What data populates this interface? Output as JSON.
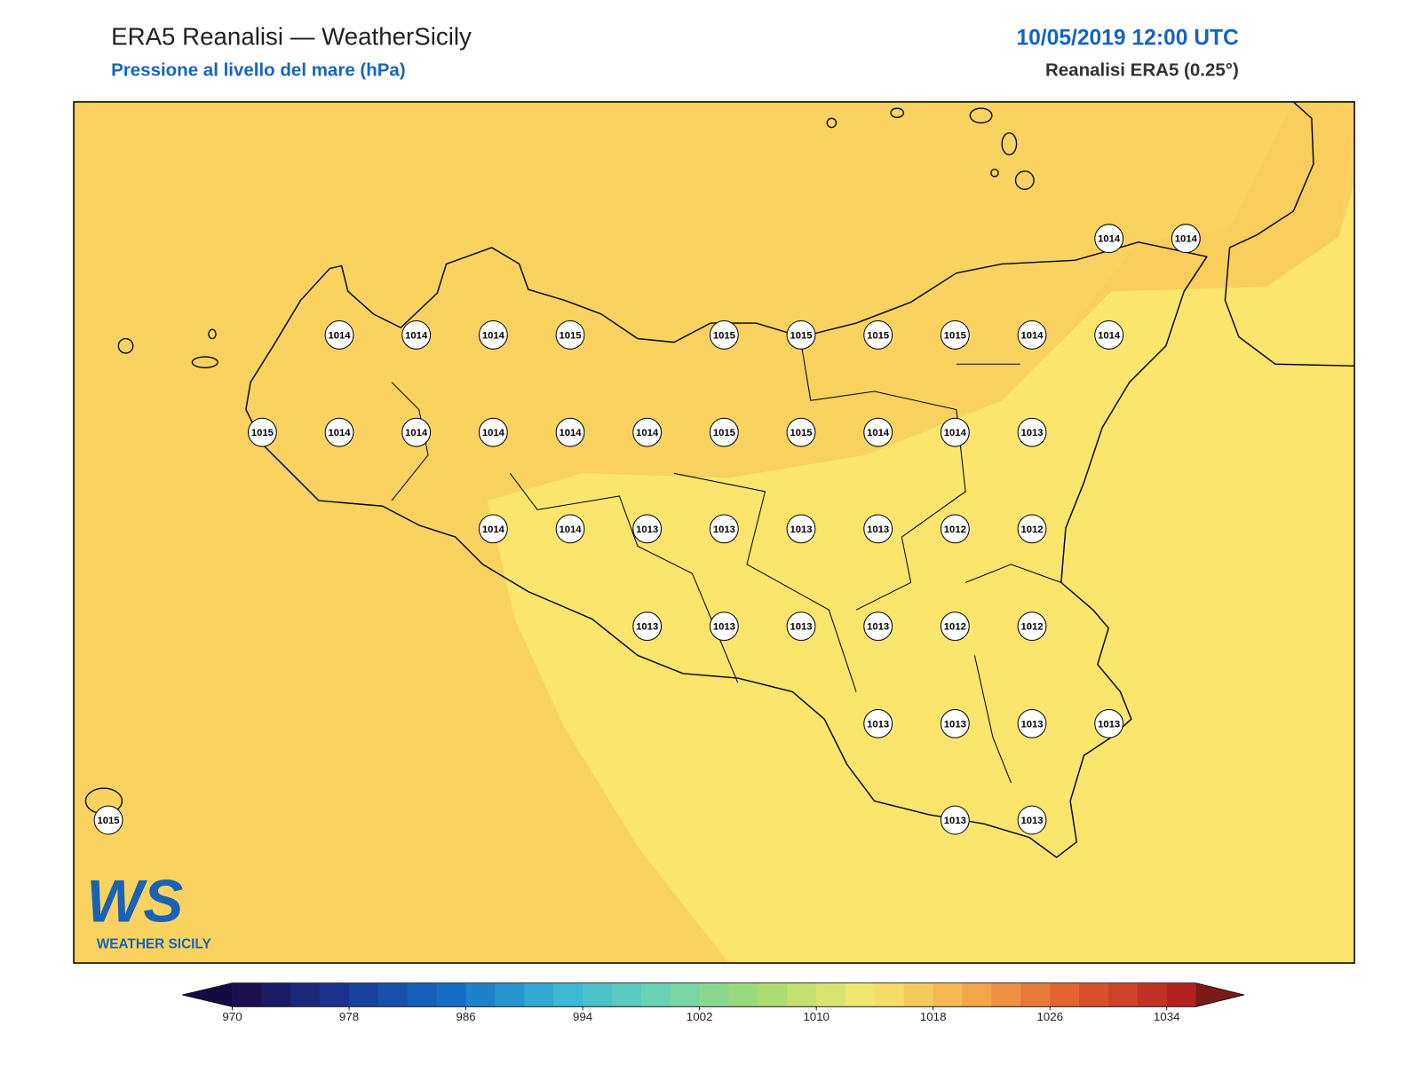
{
  "header": {
    "title": "ERA5 Reanalisi — WeatherSicily",
    "subtitle": "Pressione al livello del mare (hPa)",
    "date": "10/05/2019 12:00 UTC",
    "source": "Reanalisi ERA5 (0.25°)"
  },
  "stations": [
    [
      1014,
      1014
    ],
    [
      1014,
      1014,
      1014,
      1015,
      1015,
      1015,
      1015,
      1015,
      1014,
      1014
    ],
    [
      1015,
      1014,
      1014,
      1014,
      1014,
      1014,
      1015,
      1015,
      1014,
      1014,
      1013
    ],
    [
      1014,
      1014,
      1013,
      1013,
      1013,
      1013,
      1012,
      1012
    ],
    [
      1013,
      1013,
      1013,
      1013,
      1012,
      1012
    ],
    [
      1013,
      1013,
      1013,
      1013
    ],
    [
      1015,
      1013,
      1013
    ]
  ],
  "colorbar": {
    "clim": [
      970,
      1036
    ],
    "step": 2,
    "ticks": [
      970,
      978,
      986,
      994,
      1002,
      1010,
      1018,
      1026,
      1034
    ],
    "colors": [
      "#1c1050",
      "#1a3a9a",
      "#1470c8",
      "#38b6d4",
      "#6ad4b4",
      "#a8dc70",
      "#f6e870",
      "#f4a848",
      "#e05a2e",
      "#b52222"
    ],
    "extend_colors": [
      "#140c40",
      "#7a1a1a"
    ]
  },
  "logo": {
    "mark": "WS",
    "tagline": "WEATHER SICILY"
  }
}
